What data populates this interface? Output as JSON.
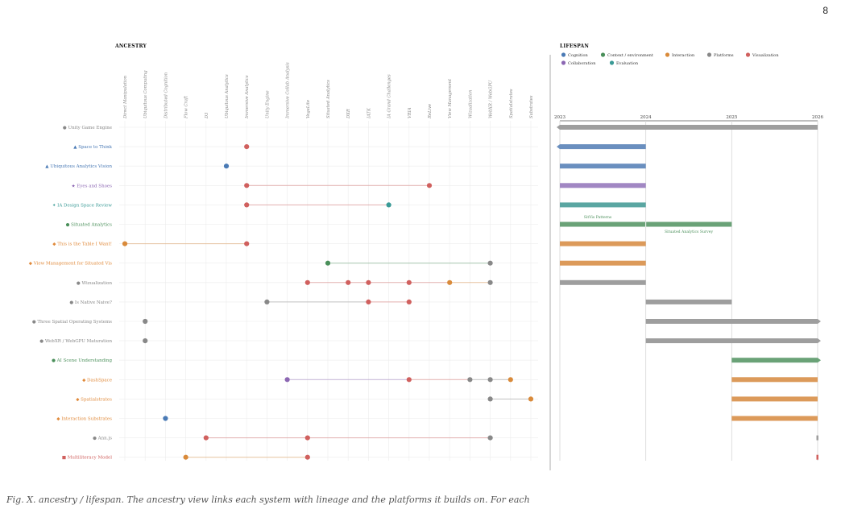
{
  "page_number": "8",
  "caption": "Fig. X. ancestry / lifespan. The ancestry view links each system with lineage and the platforms it builds on. For each",
  "ancestry": {
    "title": "ANCESTRY",
    "columns": [
      "Direct Manipulation",
      "Ubiquitous Computing",
      "Distributed Cognition",
      "Flow Craft",
      "D3",
      "Ubiquitous Analytics",
      "Immersive Analytics",
      "Unity Engine",
      "Immersive Collab Analysis",
      "VegaLite",
      "Situated Analytics",
      "DXR",
      "IATK",
      "IA Grand Challenges",
      "VRIA",
      "ReLive",
      "View Management",
      "Wizualization",
      "WebXR / WebGPU",
      "Spatialstrates",
      "Substrates"
    ],
    "highlight_columns": [
      "View Management",
      "Spatialstrates",
      "Substrates"
    ],
    "rows": [
      {
        "label": "Unity Game Engine",
        "marker": "●",
        "color": "#888888",
        "dots": []
      },
      {
        "label": "Space to Think",
        "marker": "▲",
        "color": "#4a7ab5",
        "dots": [
          {
            "col": 6,
            "color": "#d0605e"
          }
        ]
      },
      {
        "label": "Ubiquitous Analytics Vision",
        "marker": "▲",
        "color": "#4a7ab5",
        "dots": [
          {
            "col": 5,
            "color": "#4a7ab5"
          }
        ]
      },
      {
        "label": "Eyes and Shoes",
        "marker": "★",
        "color": "#8c67b3",
        "dots": [
          {
            "col": 6,
            "color": "#d0605e"
          },
          {
            "col": 15,
            "color": "#d0605e"
          }
        ]
      },
      {
        "label": "IA Design Space Review",
        "marker": "✦",
        "color": "#3a9a96",
        "dots": [
          {
            "col": 6,
            "color": "#d0605e"
          },
          {
            "col": 13,
            "color": "#3a9a96"
          }
        ]
      },
      {
        "label": "Situated Analytics",
        "marker": "●",
        "color": "#4a8f5a",
        "dots": []
      },
      {
        "label": "This is the Table I Want!",
        "marker": "◆",
        "color": "#e08a3b",
        "dots": [
          {
            "col": 0,
            "color": "#d98a3a"
          },
          {
            "col": 6,
            "color": "#d0605e"
          }
        ]
      },
      {
        "label": "View Management for Situated Vis",
        "marker": "◆",
        "color": "#e08a3b",
        "dots": [
          {
            "col": 10,
            "color": "#4a8f5a"
          },
          {
            "col": 18,
            "color": "#888888"
          }
        ]
      },
      {
        "label": "Wizualization",
        "marker": "●",
        "color": "#888888",
        "dots": [
          {
            "col": 9,
            "color": "#d0605e"
          },
          {
            "col": 11,
            "color": "#d0605e"
          },
          {
            "col": 12,
            "color": "#d0605e"
          },
          {
            "col": 14,
            "color": "#d0605e"
          },
          {
            "col": 16,
            "color": "#d98a3a"
          },
          {
            "col": 18,
            "color": "#888888"
          }
        ]
      },
      {
        "label": "Is Native Naive?",
        "marker": "●",
        "color": "#888888",
        "dots": [
          {
            "col": 7,
            "color": "#888888"
          },
          {
            "col": 12,
            "color": "#d0605e"
          },
          {
            "col": 14,
            "color": "#d0605e"
          }
        ]
      },
      {
        "label": "Three Spatial Operating Systems",
        "marker": "●",
        "color": "#888888",
        "dots": [
          {
            "col": 1,
            "color": "#888888"
          }
        ]
      },
      {
        "label": "WebXR / WebGPU Maturation",
        "marker": "●",
        "color": "#888888",
        "dots": [
          {
            "col": 1,
            "color": "#888888"
          }
        ]
      },
      {
        "label": "AI Scene Understanding",
        "marker": "●",
        "color": "#4a8f5a",
        "dots": []
      },
      {
        "label": "DashSpace",
        "marker": "◆",
        "color": "#e08a3b",
        "dots": [
          {
            "col": 8,
            "color": "#8c67b3"
          },
          {
            "col": 14,
            "color": "#d0605e"
          },
          {
            "col": 17,
            "color": "#888888"
          },
          {
            "col": 18,
            "color": "#888888"
          },
          {
            "col": 19,
            "color": "#d98a3a"
          }
        ]
      },
      {
        "label": "Spatialstrates",
        "marker": "◆",
        "color": "#e08a3b",
        "dots": [
          {
            "col": 18,
            "color": "#888888"
          },
          {
            "col": 20,
            "color": "#d98a3a"
          }
        ]
      },
      {
        "label": "Interaction Substrates",
        "marker": "◆",
        "color": "#e08a3b",
        "dots": [
          {
            "col": 2,
            "color": "#4a7ab5"
          }
        ]
      },
      {
        "label": "Ann.js",
        "marker": "●",
        "color": "#888888",
        "dots": [
          {
            "col": 4,
            "color": "#d0605e"
          },
          {
            "col": 9,
            "color": "#d0605e"
          },
          {
            "col": 18,
            "color": "#888888"
          }
        ]
      },
      {
        "label": "Multiliteracy Model",
        "marker": "■",
        "color": "#d0605e",
        "dots": [
          {
            "col": 3,
            "color": "#d98a3a"
          },
          {
            "col": 9,
            "color": "#d0605e"
          }
        ]
      }
    ]
  },
  "lifespan": {
    "title": "LIFESPAN",
    "legend": [
      {
        "label": "Cognition",
        "color": "#4a7ab5"
      },
      {
        "label": "Context / environment",
        "color": "#4a8f5a"
      },
      {
        "label": "Interaction",
        "color": "#d98a3a"
      },
      {
        "label": "Platforms",
        "color": "#888888"
      },
      {
        "label": "Visualization",
        "color": "#d0605e"
      },
      {
        "label": "Collaboration",
        "color": "#8c67b3"
      },
      {
        "label": "Evaluation",
        "color": "#3a9a96"
      }
    ],
    "years": [
      "2023",
      "2024",
      "2025",
      "2026"
    ],
    "annotations": [
      "SitVis Patterns",
      "Situated Analytics Survey"
    ]
  },
  "chart_data": {
    "type": "bar",
    "x_unit": "year",
    "xlim": [
      2023,
      2026
    ],
    "categories": [
      "Unity Game Engine",
      "Space to Think",
      "Ubiquitous Analytics Vision",
      "Eyes and Shoes",
      "IA Design Space Review",
      "Situated Analytics",
      "This is the Table I Want!",
      "View Management for Situated Vis",
      "Wizualization",
      "Is Native Naive?",
      "Three Spatial Operating Systems",
      "WebXR / WebGPU Maturation",
      "AI Scene Understanding",
      "DashSpace",
      "Spatialstrates",
      "Interaction Substrates",
      "Ann.js",
      "Multiliteracy Model"
    ],
    "bars": [
      {
        "start": 2023.0,
        "end": 2026.0,
        "color": "#9e9e9e",
        "left_arrow": true,
        "right_arrow": false
      },
      {
        "start": 2023.0,
        "end": 2024.0,
        "color": "#6a8fbf",
        "left_arrow": true,
        "right_arrow": false
      },
      {
        "start": 2023.0,
        "end": 2024.0,
        "color": "#6a8fbf",
        "left_arrow": false,
        "right_arrow": false
      },
      {
        "start": 2023.0,
        "end": 2024.0,
        "color": "#a187c3",
        "left_arrow": false,
        "right_arrow": false
      },
      {
        "start": 2023.0,
        "end": 2024.0,
        "color": "#5aa6a2",
        "left_arrow": false,
        "right_arrow": false
      },
      {
        "start": 2023.0,
        "end": 2025.0,
        "color": "#6aa277",
        "left_arrow": false,
        "right_arrow": false,
        "split": 2024.0
      },
      {
        "start": 2023.0,
        "end": 2024.0,
        "color": "#dc9a5a",
        "left_arrow": false,
        "right_arrow": false
      },
      {
        "start": 2023.0,
        "end": 2024.0,
        "color": "#dc9a5a",
        "left_arrow": false,
        "right_arrow": false
      },
      {
        "start": 2023.0,
        "end": 2024.0,
        "color": "#9e9e9e",
        "left_arrow": false,
        "right_arrow": false
      },
      {
        "start": 2024.0,
        "end": 2025.0,
        "color": "#9e9e9e",
        "left_arrow": false,
        "right_arrow": false
      },
      {
        "start": 2024.0,
        "end": 2026.0,
        "color": "#9e9e9e",
        "left_arrow": false,
        "right_arrow": true
      },
      {
        "start": 2024.0,
        "end": 2026.0,
        "color": "#9e9e9e",
        "left_arrow": false,
        "right_arrow": true
      },
      {
        "start": 2025.0,
        "end": 2026.0,
        "color": "#6aa277",
        "left_arrow": false,
        "right_arrow": true
      },
      {
        "start": 2025.0,
        "end": 2026.0,
        "color": "#dc9a5a",
        "left_arrow": false,
        "right_arrow": false
      },
      {
        "start": 2025.0,
        "end": 2026.0,
        "color": "#dc9a5a",
        "left_arrow": false,
        "right_arrow": false
      },
      {
        "start": 2025.0,
        "end": 2026.0,
        "color": "#dc9a5a",
        "left_arrow": false,
        "right_arrow": false
      },
      {
        "start": 2026.0,
        "end": 2026.0,
        "color": "#9e9e9e",
        "left_arrow": false,
        "right_arrow": false
      },
      {
        "start": 2026.0,
        "end": 2026.0,
        "color": "#d0605e",
        "left_arrow": false,
        "right_arrow": false
      }
    ]
  }
}
